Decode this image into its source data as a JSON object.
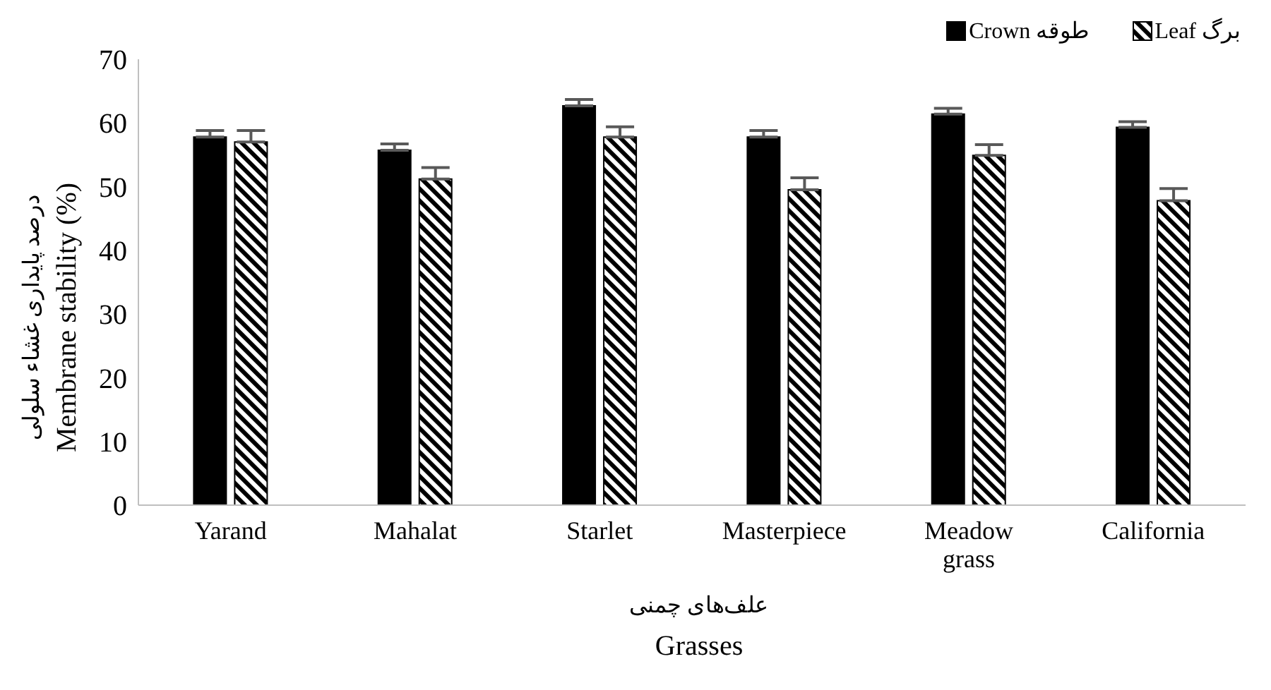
{
  "chart_data": {
    "type": "bar",
    "categories": [
      "Yarand",
      "Mahalat",
      "Starlet",
      "Masterpiece",
      "Meadow grass",
      "California"
    ],
    "series": [
      {
        "name": "Crown طوقه",
        "color": "#000000",
        "values": [
          57.8,
          55.7,
          62.7,
          57.8,
          61.4,
          59.3
        ],
        "errors": [
          [
            57.8,
            58.8
          ],
          [
            55.7,
            56.7
          ],
          [
            62.7,
            63.7
          ],
          [
            57.8,
            58.8
          ],
          [
            61.4,
            62.3
          ],
          [
            59.3,
            60.2
          ]
        ]
      },
      {
        "name": "Leaf برگ",
        "color": "#000000",
        "values": [
          57.0,
          51.2,
          57.8,
          49.5,
          54.9,
          47.8
        ],
        "errors": [
          [
            57.0,
            58.8
          ],
          [
            51.2,
            53.0
          ],
          [
            57.8,
            59.4
          ],
          [
            49.5,
            51.4
          ],
          [
            54.9,
            56.6
          ],
          [
            47.8,
            49.7
          ]
        ]
      }
    ],
    "xlabel": "علف‌های چمنی\nGrasses",
    "ylabel": "درصد پایداری غشاء سلولی\nMembrane stability (%)",
    "ylim": [
      0,
      70
    ],
    "yticks": [
      0,
      10,
      20,
      30,
      40,
      50,
      60,
      70
    ],
    "grid": false,
    "legend": "top right"
  }
}
